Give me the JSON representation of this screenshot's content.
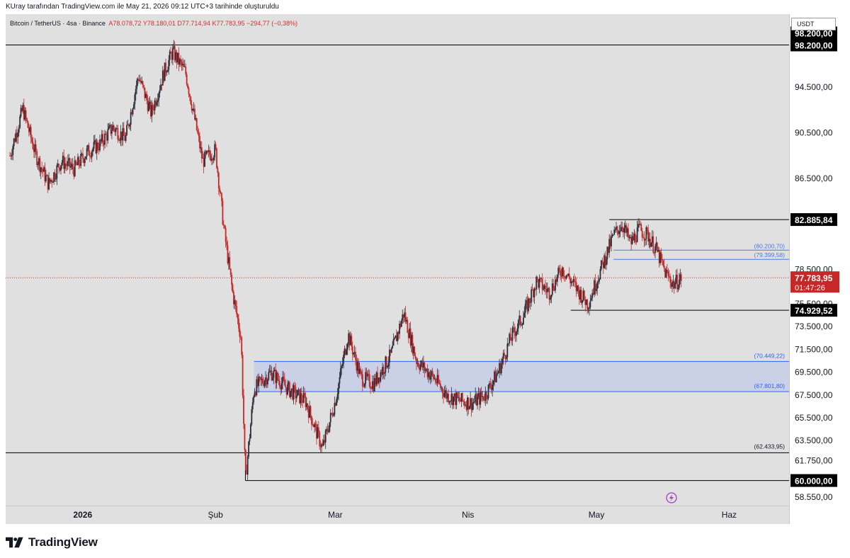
{
  "attribution": "KUray tarafından TradingView.com ile May 21, 2026 09:12 UTC+3 tarihinde oluşturuldu",
  "symbol": {
    "name": "Bitcoin / TetherUS · 4sa · Binance",
    "open": "A78.078,72",
    "high": "Y78.180,01",
    "low": "D77.714,94",
    "close": "K77.783,95",
    "change": "−294,77 (−0,38%)"
  },
  "currency": "USDT",
  "brand": "TradingView",
  "colors": {
    "up": "#2a2e39",
    "down": "#c62828",
    "zone_fill": "#c5cde6",
    "zone_border": "#2962ff",
    "current_price": "#c62828",
    "level_line": "#000000",
    "plot_background": "#e0e0e0"
  },
  "chart_data": {
    "type": "candlestick",
    "ylim": [
      57800,
      100900
    ],
    "y_ticks": [
      {
        "value": 94500,
        "label": "94.500,00"
      },
      {
        "value": 90500,
        "label": "90.500,00"
      },
      {
        "value": 86500,
        "label": "86.500,00"
      },
      {
        "value": 78500,
        "label": "78.500,00"
      },
      {
        "value": 75500,
        "label": "75.500,00"
      },
      {
        "value": 73500,
        "label": "73.500,00"
      },
      {
        "value": 71500,
        "label": "71.500,00"
      },
      {
        "value": 69500,
        "label": "69.500,00"
      },
      {
        "value": 67500,
        "label": "67.500,00"
      },
      {
        "value": 65500,
        "label": "65.500,00"
      },
      {
        "value": 63500,
        "label": "63.500,00"
      },
      {
        "value": 61750,
        "label": "61.750,00"
      },
      {
        "value": 58550,
        "label": "58.550,00"
      }
    ],
    "x_labels": [
      {
        "date": "2026-01-01",
        "label": "2026",
        "bold": true
      },
      {
        "date": "2026-02-01",
        "label": "Şub"
      },
      {
        "date": "2026-03-01",
        "label": "Mar"
      },
      {
        "date": "2026-04-01",
        "label": "Nis"
      },
      {
        "date": "2026-05-01",
        "label": "May"
      },
      {
        "date": "2026-06-01",
        "label": "Haz"
      }
    ],
    "x_domain": [
      "2025-12-14",
      "2026-06-15"
    ],
    "price_path": [
      [
        "2025-12-15",
        88500
      ],
      [
        "2025-12-18",
        92600
      ],
      [
        "2025-12-21",
        88600
      ],
      [
        "2025-12-24",
        86000
      ],
      [
        "2025-12-27",
        88000
      ],
      [
        "2025-12-30",
        87300
      ],
      [
        "2026-01-02",
        88800
      ],
      [
        "2026-01-05",
        89500
      ],
      [
        "2026-01-08",
        91000
      ],
      [
        "2026-01-11",
        90000
      ],
      [
        "2026-01-14",
        95500
      ],
      [
        "2026-01-17",
        92200
      ],
      [
        "2026-01-20",
        95800
      ],
      [
        "2026-01-22",
        97600
      ],
      [
        "2026-01-25",
        95800
      ],
      [
        "2026-01-27",
        92000
      ],
      [
        "2026-01-29",
        88000
      ],
      [
        "2026-02-01",
        89000
      ],
      [
        "2026-02-03",
        82000
      ],
      [
        "2026-02-05",
        76500
      ],
      [
        "2026-02-07",
        72500
      ],
      [
        "2026-02-08",
        60000
      ],
      [
        "2026-02-10",
        68000
      ],
      [
        "2026-02-14",
        69500
      ],
      [
        "2026-02-18",
        68000
      ],
      [
        "2026-02-22",
        67000
      ],
      [
        "2026-02-26",
        62800
      ],
      [
        "2026-03-01",
        67000
      ],
      [
        "2026-03-04",
        72800
      ],
      [
        "2026-03-07",
        69000
      ],
      [
        "2026-03-10",
        68500
      ],
      [
        "2026-03-14",
        71000
      ],
      [
        "2026-03-17",
        74700
      ],
      [
        "2026-03-20",
        70500
      ],
      [
        "2026-03-24",
        69000
      ],
      [
        "2026-03-27",
        67500
      ],
      [
        "2026-03-30",
        67000
      ],
      [
        "2026-04-02",
        66800
      ],
      [
        "2026-04-05",
        67500
      ],
      [
        "2026-04-08",
        69500
      ],
      [
        "2026-04-11",
        72500
      ],
      [
        "2026-04-14",
        74500
      ],
      [
        "2026-04-17",
        77500
      ],
      [
        "2026-04-20",
        76500
      ],
      [
        "2026-04-23",
        78600
      ],
      [
        "2026-04-26",
        77000
      ],
      [
        "2026-04-29",
        75500
      ],
      [
        "2026-05-02",
        78500
      ],
      [
        "2026-05-05",
        81500
      ],
      [
        "2026-05-07",
        82500
      ],
      [
        "2026-05-09",
        80800
      ],
      [
        "2026-05-11",
        82000
      ],
      [
        "2026-05-13",
        81500
      ],
      [
        "2026-05-15",
        80200
      ],
      [
        "2026-05-17",
        78300
      ],
      [
        "2026-05-19",
        77200
      ],
      [
        "2026-05-21",
        77800
      ]
    ],
    "horizontal_levels": [
      {
        "name": "high-98200",
        "value": 98200,
        "label": "98.200,00",
        "from": "2025-12-14",
        "to": "2026-06-15",
        "badge": true
      },
      {
        "name": "level-82885",
        "value": 82885.84,
        "label": "82.885,84",
        "from": "2026-05-04",
        "to": "2026-06-15",
        "badge": true
      },
      {
        "name": "level-74929",
        "value": 74929.52,
        "label": "74.929,52",
        "from": "2026-04-25",
        "to": "2026-06-15",
        "badge": true
      },
      {
        "name": "level-62433",
        "value": 62433.95,
        "label": "(62.433,95)",
        "from": "2025-12-14",
        "to": "2026-06-15",
        "badge": false
      },
      {
        "name": "low-60000",
        "value": 60000,
        "label": "60.000,00",
        "from": "2026-02-08",
        "to": "2026-06-15",
        "badge": true
      }
    ],
    "fib_lines": [
      {
        "value": 80200.7,
        "label": "(80.200,70)"
      },
      {
        "value": 79399.58,
        "label": "(79.399,58)"
      }
    ],
    "fib_lines_from": "2026-05-05",
    "zone": {
      "top": 70449.22,
      "bottom": 67801.8,
      "top_label": "(70.449,22)",
      "bottom_label": "(67.801,80)",
      "from": "2026-02-10",
      "to": "2026-06-15"
    },
    "current_price": {
      "value": 77783.95,
      "label": "77.783,95",
      "countdown": "01:47:26"
    }
  }
}
